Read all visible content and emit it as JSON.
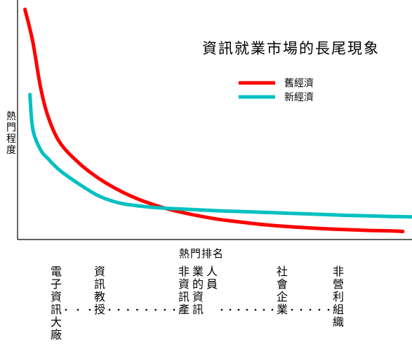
{
  "chart_data": {
    "type": "line",
    "title": "資訊就業市場的長尾現象",
    "xlabel": "熱門排名",
    "ylabel": "熱門程度",
    "legend_position": "top-right",
    "grid": false,
    "xlim": [
      0,
      100
    ],
    "ylim": [
      0,
      100
    ],
    "x": [
      1,
      3,
      5,
      7,
      10,
      15,
      20,
      25,
      30,
      35,
      40,
      45,
      50,
      55,
      60,
      65,
      70,
      75,
      80,
      85,
      90,
      95,
      100
    ],
    "series": [
      {
        "name": "舊經濟",
        "color": "#ff0000",
        "values": [
          99,
          85,
          65,
          52,
          41,
          32,
          25.5,
          20.5,
          16.6,
          13.6,
          11.3,
          9.5,
          8.0,
          6.9,
          5.9,
          5.1,
          4.5,
          4.0,
          3.6,
          3.3,
          3.0,
          2.8,
          2.6
        ]
      },
      {
        "name": "新經濟",
        "color": "#00c0c0",
        "values": [
          62,
          47,
          38,
          34,
          29,
          23,
          17.9,
          15.0,
          13.7,
          12.9,
          12.4,
          12.0,
          11.6,
          11.3,
          11.0,
          10.7,
          10.4,
          10.1,
          9.8,
          9.5,
          9.3,
          9.1,
          8.9
        ]
      }
    ],
    "categories": [
      "電子資訊大廠",
      "資訊教授",
      "非資訊產業的資訊人員",
      "社會企業",
      "非營利組織"
    ],
    "category_separator": "·······"
  }
}
